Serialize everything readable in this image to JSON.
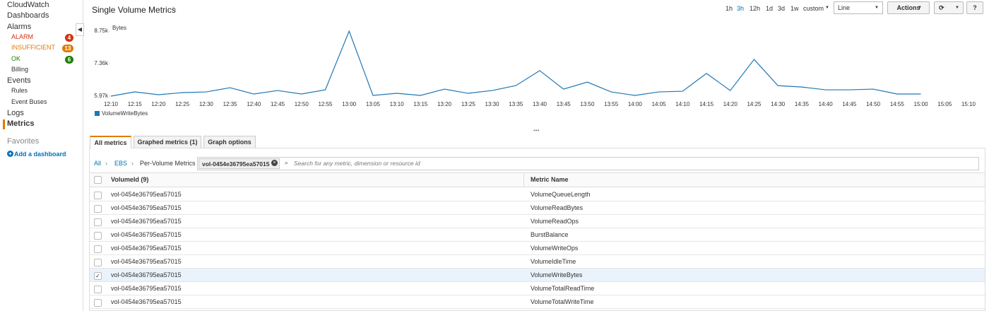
{
  "sidebar": {
    "nav": [
      {
        "label": "CloudWatch"
      },
      {
        "label": "Dashboards"
      },
      {
        "label": "Alarms",
        "children": [
          {
            "label": "ALARM",
            "count": 4,
            "color": "#d13212"
          },
          {
            "label": "INSUFFICIENT",
            "count": 13,
            "color": "#e07b00"
          },
          {
            "label": "OK",
            "count": 6,
            "color": "#1d8102"
          },
          {
            "label": "Billing"
          }
        ]
      },
      {
        "label": "Events",
        "children": [
          {
            "label": "Rules"
          },
          {
            "label": "Event Buses"
          }
        ]
      },
      {
        "label": "Logs"
      },
      {
        "label": "Metrics",
        "selected": true
      }
    ],
    "favorites": {
      "title": "Favorites",
      "link": "Add a dashboard"
    }
  },
  "header": {
    "title": "Single Volume Metrics",
    "ranges": [
      {
        "label": "1h"
      },
      {
        "label": "3h",
        "selected": true
      },
      {
        "label": "12h"
      },
      {
        "label": "1d"
      },
      {
        "label": "3d"
      },
      {
        "label": "1w"
      }
    ],
    "custom": "custom",
    "view": "Line",
    "actions": "Actions",
    "help": "?"
  },
  "chart_data": {
    "type": "line",
    "y_label": "Bytes",
    "categories": [
      "12:10",
      "12:15",
      "12:20",
      "12:25",
      "12:30",
      "12:35",
      "12:40",
      "12:45",
      "12:50",
      "12:55",
      "13:00",
      "13:05",
      "13:10",
      "13:15",
      "13:20",
      "13:25",
      "13:30",
      "13:35",
      "13:40",
      "13:45",
      "13:50",
      "13:55",
      "14:00",
      "14:05",
      "14:10",
      "14:15",
      "14:20",
      "14:25",
      "14:30",
      "14:35",
      "14:40",
      "14:45",
      "14:50",
      "14:55",
      "15:00",
      "15:05",
      "15:10"
    ],
    "series": [
      {
        "name": "VolumeWriteBytes",
        "color": "#1f77b4",
        "values": [
          5970,
          6150,
          6030,
          6120,
          6150,
          6330,
          6060,
          6210,
          6060,
          6240,
          8750,
          6000,
          6090,
          6000,
          6270,
          6090,
          6210,
          6420,
          7060,
          6270,
          6570,
          6150,
          6000,
          6150,
          6180,
          6940,
          6210,
          7540,
          6420,
          6360,
          6240,
          6240,
          6270,
          6060,
          6060,
          null,
          null
        ]
      }
    ],
    "ylim": [
      5970,
      8750
    ],
    "yticks": [
      {
        "value": 5970,
        "label": "5.97k"
      },
      {
        "value": 7360,
        "label": "7.36k"
      },
      {
        "value": 8750,
        "label": "8.75k"
      }
    ],
    "grid": false
  },
  "tabs": [
    {
      "label": "All metrics",
      "active": true
    },
    {
      "label": "Graphed metrics (1)"
    },
    {
      "label": "Graph options"
    }
  ],
  "breadcrumb": [
    "All",
    "EBS",
    "Per-Volume Metrics"
  ],
  "filter": "vol-0454e36795ea57015",
  "search_placeholder": "Search for any metric, dimension or resource id",
  "table": {
    "columns": [
      "VolumeId (9)",
      "Metric Name"
    ],
    "rows": [
      {
        "cells": [
          "vol-0454e36795ea57015",
          "VolumeQueueLength"
        ]
      },
      {
        "cells": [
          "vol-0454e36795ea57015",
          "VolumeReadBytes"
        ]
      },
      {
        "cells": [
          "vol-0454e36795ea57015",
          "VolumeReadOps"
        ]
      },
      {
        "cells": [
          "vol-0454e36795ea57015",
          "BurstBalance"
        ]
      },
      {
        "cells": [
          "vol-0454e36795ea57015",
          "VolumeWriteOps"
        ]
      },
      {
        "cells": [
          "vol-0454e36795ea57015",
          "VolumeIdleTime"
        ]
      },
      {
        "cells": [
          "vol-0454e36795ea57015",
          "VolumeWriteBytes"
        ],
        "checked": true
      },
      {
        "cells": [
          "vol-0454e36795ea57015",
          "VolumeTotalReadTime"
        ]
      },
      {
        "cells": [
          "vol-0454e36795ea57015",
          "VolumeTotalWriteTime"
        ]
      }
    ]
  }
}
